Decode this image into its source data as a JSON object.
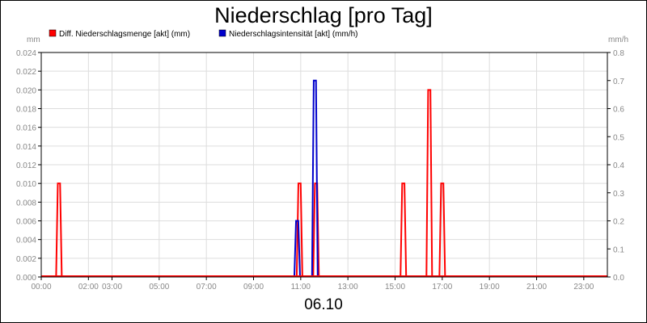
{
  "chart_data": {
    "type": "line",
    "title": "Niederschlag [pro Tag]",
    "date_label": "06.10",
    "y_left": {
      "unit_label": "mm",
      "range": [
        0,
        0.024
      ],
      "ticks": [
        "0.000",
        "0.002",
        "0.004",
        "0.006",
        "0.008",
        "0.010",
        "0.012",
        "0.014",
        "0.016",
        "0.018",
        "0.020",
        "0.022",
        "0.024"
      ]
    },
    "y_right": {
      "unit_label": "mm/h",
      "range": [
        0,
        0.8
      ],
      "ticks": [
        "0.0",
        "0.1",
        "0.2",
        "0.3",
        "0.4",
        "0.5",
        "0.6",
        "0.7",
        "0.8"
      ]
    },
    "x_range_hours": [
      0,
      24
    ],
    "x_ticks": [
      {
        "hour": 0,
        "label": "00:00"
      },
      {
        "hour": 2,
        "label": "02:00"
      },
      {
        "hour": 3,
        "label": "03:00"
      },
      {
        "hour": 5,
        "label": "05:00"
      },
      {
        "hour": 7,
        "label": "07:00"
      },
      {
        "hour": 9,
        "label": "09:00"
      },
      {
        "hour": 11,
        "label": "11:00"
      },
      {
        "hour": 13,
        "label": "13:00"
      },
      {
        "hour": 15,
        "label": "15:00"
      },
      {
        "hour": 17,
        "label": "17:00"
      },
      {
        "hour": 19,
        "label": "19:00"
      },
      {
        "hour": 21,
        "label": "21:00"
      },
      {
        "hour": 23,
        "label": "23:00"
      }
    ],
    "grid": true,
    "legend_position": "top",
    "series": [
      {
        "name": "Diff. Niederschlagsmenge [akt] (mm)",
        "axis": "left",
        "color": "#ff0000",
        "peaks": [
          {
            "hour": 0.75,
            "value": 0.01
          },
          {
            "hour": 10.95,
            "value": 0.01
          },
          {
            "hour": 11.65,
            "value": 0.01
          },
          {
            "hour": 15.35,
            "value": 0.01
          },
          {
            "hour": 16.45,
            "value": 0.02
          },
          {
            "hour": 17.0,
            "value": 0.01
          }
        ]
      },
      {
        "name": "Niederschlagsintensität [akt] (mm/h)",
        "axis": "right",
        "color": "#0000cc",
        "peaks": [
          {
            "hour": 10.85,
            "value": 0.2
          },
          {
            "hour": 11.6,
            "value": 0.7
          }
        ]
      }
    ]
  }
}
